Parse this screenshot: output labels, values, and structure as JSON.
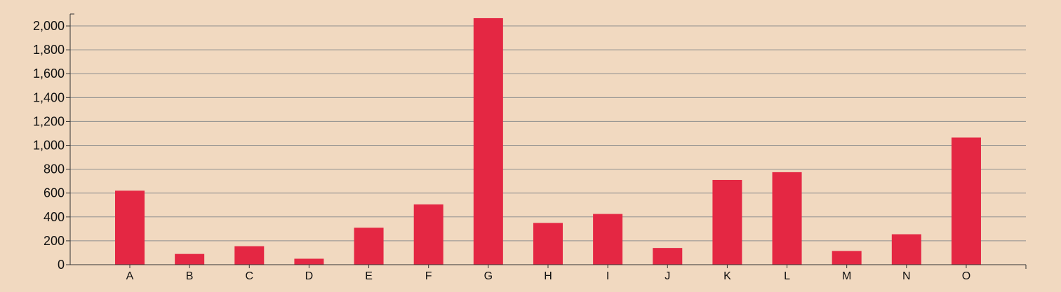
{
  "chart_data": {
    "type": "bar",
    "title": "",
    "xlabel": "",
    "ylabel": "",
    "categories": [
      "A",
      "B",
      "C",
      "D",
      "E",
      "F",
      "G",
      "H",
      "I",
      "J",
      "K",
      "L",
      "M",
      "N",
      "O"
    ],
    "values": [
      620,
      90,
      155,
      50,
      310,
      505,
      2065,
      350,
      425,
      140,
      710,
      775,
      115,
      255,
      1065
    ],
    "ylim": [
      0,
      2100
    ],
    "yticks": [
      0,
      200,
      400,
      600,
      800,
      1000,
      1200,
      1400,
      1600,
      1800,
      2000
    ],
    "ytick_labels": [
      "0",
      "200",
      "400",
      "600",
      "800",
      "1,000",
      "1,200",
      "1,400",
      "1,600",
      "1,800",
      "2,000"
    ],
    "grid": true,
    "legend": "none",
    "colors": {
      "bar": "#e42743",
      "grid": "#8e8e8e",
      "axis": "#333333",
      "background": "#f1d9c0"
    }
  }
}
